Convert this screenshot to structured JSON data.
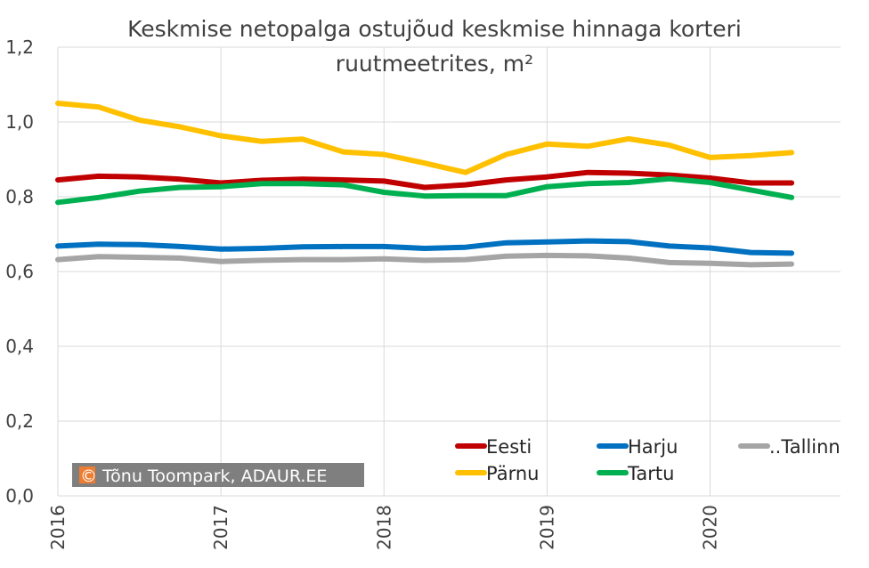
{
  "chart_data": {
    "type": "line",
    "title_lines": [
      "Keskmise netopalga ostujõud keskmise hinnaga korteri",
      "ruutmeetrites, m²"
    ],
    "xlabel": "",
    "ylabel": "",
    "ylim": [
      0,
      1.2
    ],
    "yticks": [
      "0,0",
      "0,2",
      "0,4",
      "0,6",
      "0,8",
      "1,0",
      "1,2"
    ],
    "xlim": [
      2016,
      2020.8
    ],
    "xticks": [
      "2016",
      "2017",
      "2018",
      "2019",
      "2020"
    ],
    "grid": true,
    "legend_position": "bottom-right",
    "x": [
      2016.0,
      2016.25,
      2016.5,
      2016.75,
      2017.0,
      2017.25,
      2017.5,
      2017.75,
      2018.0,
      2018.25,
      2018.5,
      2018.75,
      2019.0,
      2019.25,
      2019.5,
      2019.75,
      2020.0,
      2020.25,
      2020.5
    ],
    "series": [
      {
        "name": "Eesti",
        "color": "#c00000",
        "values": [
          0.845,
          0.855,
          0.853,
          0.847,
          0.837,
          0.844,
          0.847,
          0.845,
          0.842,
          0.825,
          0.832,
          0.845,
          0.853,
          0.865,
          0.863,
          0.858,
          0.85,
          0.837,
          0.837
        ]
      },
      {
        "name": "Harju",
        "color": "#0070c0",
        "values": [
          0.668,
          0.673,
          0.672,
          0.667,
          0.66,
          0.662,
          0.666,
          0.667,
          0.667,
          0.662,
          0.665,
          0.677,
          0.679,
          0.682,
          0.68,
          0.668,
          0.663,
          0.651,
          0.649
        ]
      },
      {
        "name": "..Tallinn",
        "color": "#a5a5a5",
        "values": [
          0.632,
          0.64,
          0.638,
          0.636,
          0.627,
          0.63,
          0.632,
          0.632,
          0.634,
          0.63,
          0.632,
          0.641,
          0.643,
          0.642,
          0.636,
          0.624,
          0.622,
          0.618,
          0.62
        ]
      },
      {
        "name": "Pärnu",
        "color": "#ffc000",
        "values": [
          1.05,
          1.04,
          1.005,
          0.987,
          0.963,
          0.948,
          0.954,
          0.92,
          0.913,
          0.89,
          0.865,
          0.913,
          0.941,
          0.935,
          0.955,
          0.938,
          0.905,
          0.91,
          0.918
        ]
      },
      {
        "name": "Tartu",
        "color": "#00b050",
        "values": [
          0.785,
          0.798,
          0.815,
          0.825,
          0.827,
          0.835,
          0.835,
          0.832,
          0.812,
          0.802,
          0.803,
          0.803,
          0.827,
          0.835,
          0.838,
          0.848,
          0.838,
          0.818,
          0.798
        ]
      }
    ],
    "annotation": "© Tõnu Toompark, ADAUR.EE",
    "annotation_color": "#7f7f7f",
    "copyright_color": "#ed7d31"
  }
}
